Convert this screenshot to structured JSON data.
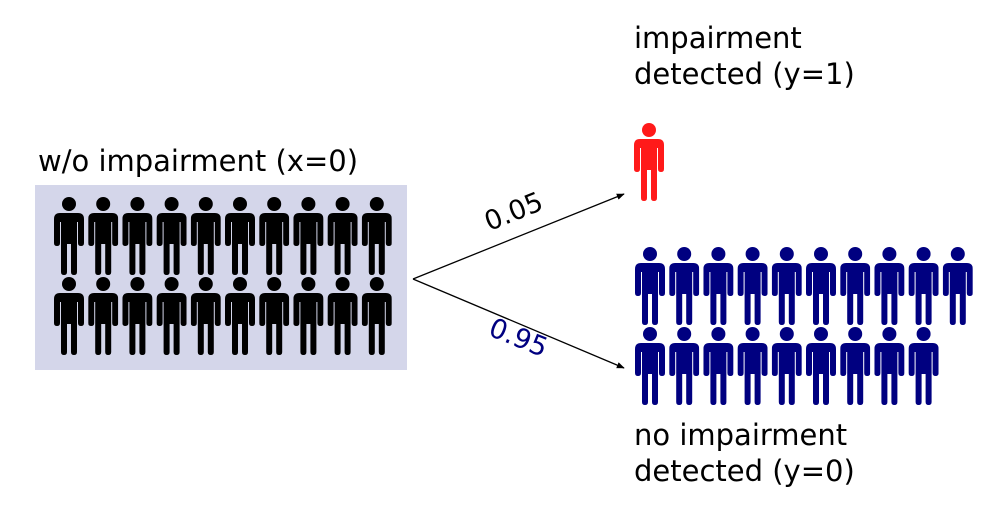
{
  "source": {
    "label": "w/o impairment (x=0)",
    "count": 20,
    "color": "#000000",
    "box_color": "#d4d6ea"
  },
  "outcomes": {
    "positive": {
      "line1": "impairment",
      "line2": "detected (y=1)",
      "probability": "0.05",
      "count": 1,
      "color": "#ff1a1a",
      "prob_color": "#000000"
    },
    "negative": {
      "line1": "no impairment",
      "line2": "detected (y=0)",
      "probability": "0.95",
      "count": 19,
      "color": "#000080",
      "prob_color": "#000080"
    }
  },
  "icon": "person-icon"
}
